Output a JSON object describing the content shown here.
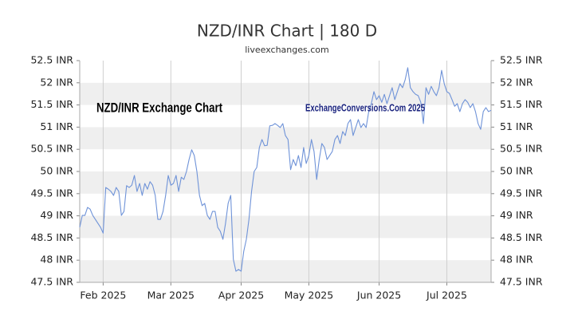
{
  "chart_data": {
    "type": "line",
    "title": "NZD/INR Chart | 180 D",
    "subtitle": "liveexchanges.com",
    "annotation": "NZD/INR Exchange Chart",
    "watermark": "ExchangeConversions.Com 2025",
    "categories": [
      null,
      null,
      null,
      null,
      null,
      null,
      null,
      null,
      null,
      "Feb 2025",
      null,
      null,
      null,
      null,
      null,
      null,
      null,
      null,
      null,
      null,
      null,
      null,
      null,
      null,
      null,
      null,
      null,
      null,
      null,
      null,
      null,
      null,
      null,
      null,
      null,
      "Mar 2025",
      null,
      null,
      null,
      null,
      null,
      null,
      null,
      null,
      null,
      null,
      null,
      null,
      null,
      null,
      null,
      null,
      null,
      null,
      null,
      null,
      null,
      null,
      null,
      null,
      null,
      null,
      "Apr 2025",
      null,
      null,
      null,
      null,
      null,
      null,
      null,
      null,
      null,
      null,
      null,
      null,
      null,
      null,
      null,
      null,
      null,
      null,
      null,
      null,
      null,
      null,
      null,
      null,
      null,
      "May 2025",
      null,
      null,
      null,
      null,
      null,
      null,
      null,
      null,
      null,
      null,
      null,
      null,
      null,
      null,
      null,
      null,
      null,
      null,
      null,
      null,
      null,
      null,
      null,
      null,
      null,
      null,
      "Jun 2025",
      null,
      null,
      null,
      null,
      null,
      null,
      null,
      null,
      null,
      null,
      null,
      null,
      null,
      null,
      null,
      null,
      null,
      null,
      null,
      null,
      null,
      null,
      null,
      null,
      null,
      "Jul 2025",
      null,
      null,
      null,
      null,
      null,
      null,
      null,
      null,
      null,
      null,
      null,
      null,
      null,
      null,
      null,
      null,
      null
    ],
    "series": [
      {
        "name": "NZD/INR",
        "color": "#6f93d8",
        "values": [
          48.74,
          49.01,
          49.01,
          49.19,
          49.15,
          49.01,
          48.92,
          48.83,
          48.74,
          48.61,
          49.64,
          49.6,
          49.55,
          49.46,
          49.64,
          49.55,
          49.01,
          49.1,
          49.68,
          49.64,
          49.69,
          49.91,
          49.55,
          49.73,
          49.46,
          49.73,
          49.6,
          49.77,
          49.69,
          49.46,
          48.92,
          48.92,
          49.1,
          49.46,
          49.91,
          49.69,
          49.73,
          49.91,
          49.55,
          49.87,
          49.82,
          50.0,
          50.27,
          50.49,
          50.36,
          50.0,
          49.46,
          49.23,
          49.28,
          49.01,
          48.92,
          49.1,
          49.1,
          48.74,
          48.65,
          48.47,
          48.83,
          49.28,
          49.46,
          48.02,
          47.75,
          47.79,
          47.75,
          48.2,
          48.47,
          48.92,
          49.55,
          50.0,
          50.09,
          50.54,
          50.72,
          50.58,
          50.59,
          51.03,
          51.04,
          51.08,
          51.04,
          50.99,
          51.08,
          50.81,
          50.72,
          50.04,
          50.27,
          50.13,
          50.36,
          50.09,
          50.54,
          50.18,
          50.36,
          50.72,
          50.45,
          49.82,
          50.27,
          50.63,
          50.54,
          50.27,
          50.36,
          50.45,
          50.72,
          50.81,
          50.63,
          50.9,
          50.81,
          51.08,
          51.17,
          50.81,
          50.99,
          51.17,
          50.99,
          51.08,
          50.99,
          51.35,
          51.53,
          51.8,
          51.62,
          51.71,
          51.56,
          51.74,
          51.53,
          51.71,
          51.89,
          51.62,
          51.8,
          51.98,
          51.89,
          52.07,
          52.34,
          51.89,
          51.8,
          51.74,
          51.71,
          51.56,
          51.08,
          51.89,
          51.74,
          51.92,
          51.8,
          51.71,
          51.89,
          52.28,
          51.98,
          51.8,
          51.76,
          51.62,
          51.47,
          51.53,
          51.35,
          51.53,
          51.62,
          51.56,
          51.44,
          51.53,
          51.35,
          51.08,
          50.95,
          51.35,
          51.44,
          51.35,
          51.38
        ]
      }
    ],
    "ylim": [
      47.5,
      52.5
    ],
    "yticks": [
      {
        "value": 47.5,
        "label": "47.5 INR"
      },
      {
        "value": 48,
        "label": "48 INR"
      },
      {
        "value": 48.5,
        "label": "48.5 INR"
      },
      {
        "value": 49,
        "label": "49 INR"
      },
      {
        "value": 49.5,
        "label": "49.5 INR"
      },
      {
        "value": 50,
        "label": "50 INR"
      },
      {
        "value": 50.5,
        "label": "50.5 INR"
      },
      {
        "value": 51,
        "label": "51 INR"
      },
      {
        "value": 51.5,
        "label": "51.5 INR"
      },
      {
        "value": 52,
        "label": "52 INR"
      },
      {
        "value": 52.5,
        "label": "52.5 INR"
      }
    ],
    "grid": true,
    "band_color": "#efefef"
  }
}
